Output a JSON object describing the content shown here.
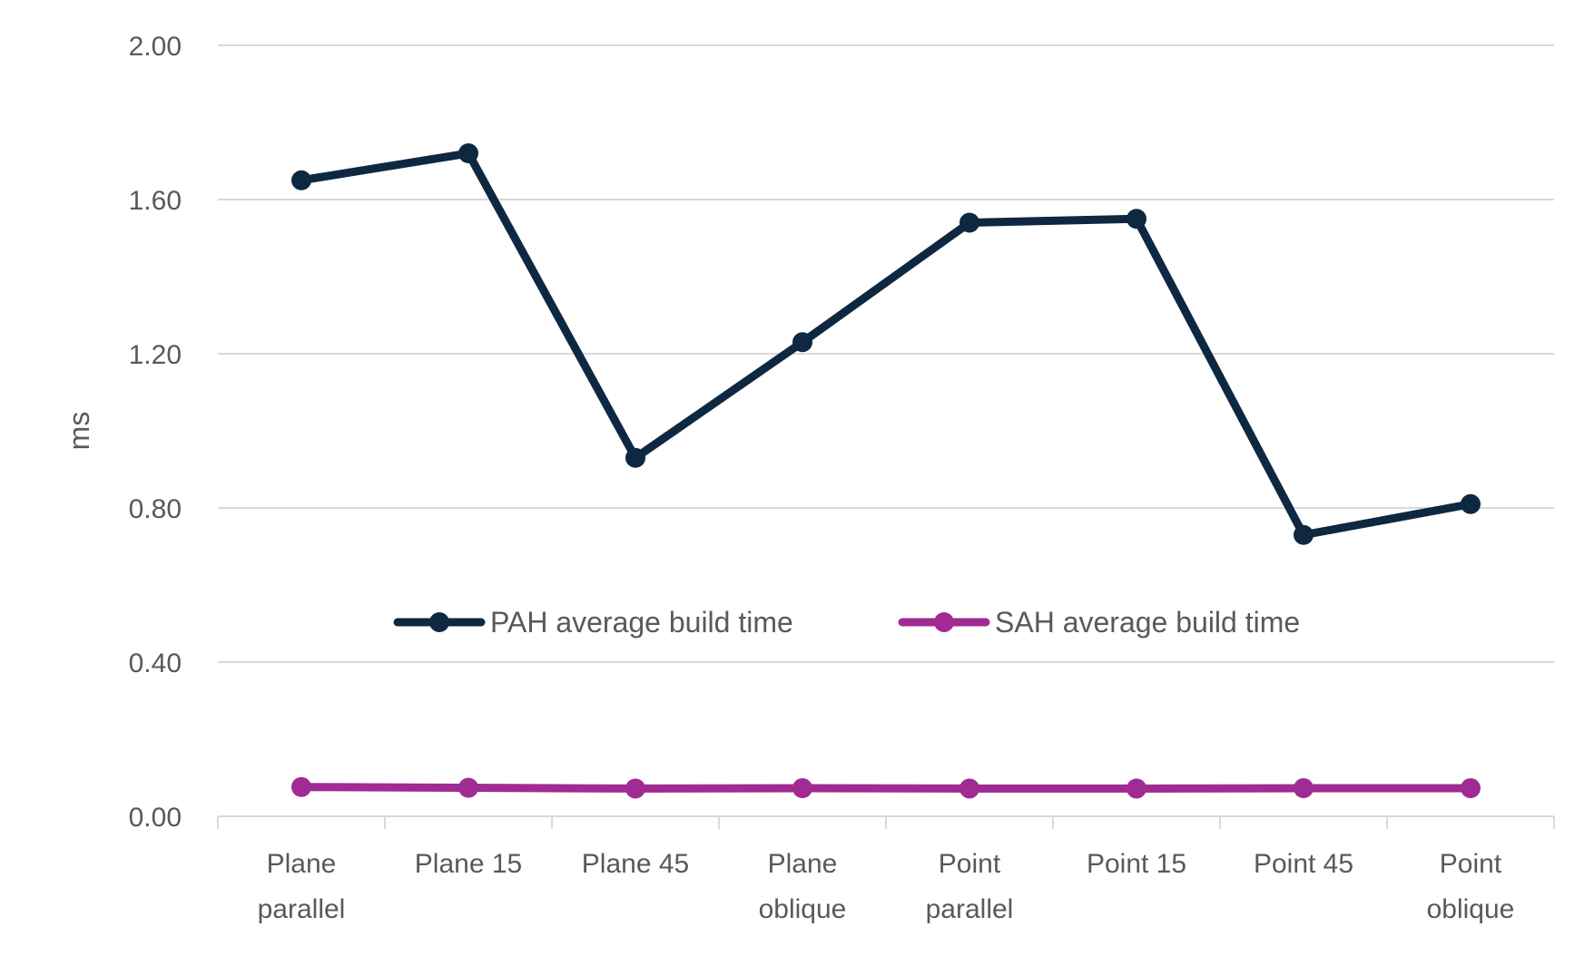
{
  "chart_data": {
    "type": "line",
    "title": "",
    "xlabel": "",
    "ylabel": "ms",
    "ylim": [
      0,
      2
    ],
    "yticks": [
      "0.00",
      "0.40",
      "0.80",
      "1.20",
      "1.60",
      "2.00"
    ],
    "grid": true,
    "legend": "inside-center",
    "categories": [
      [
        "Plane",
        "parallel"
      ],
      [
        "Plane 15"
      ],
      [
        "Plane 45"
      ],
      [
        "Plane",
        "oblique"
      ],
      [
        "Point",
        "parallel"
      ],
      [
        "Point 15"
      ],
      [
        "Point 45"
      ],
      [
        "Point",
        "oblique"
      ]
    ],
    "series": [
      {
        "name": "PAH average build time",
        "color": "#0e2841",
        "values": [
          1.65,
          1.72,
          0.93,
          1.23,
          1.54,
          1.55,
          0.73,
          0.81
        ]
      },
      {
        "name": "SAH average build time",
        "color": "#a02b93",
        "values": [
          0.076,
          0.074,
          0.072,
          0.073,
          0.072,
          0.072,
          0.073,
          0.073
        ]
      }
    ]
  }
}
